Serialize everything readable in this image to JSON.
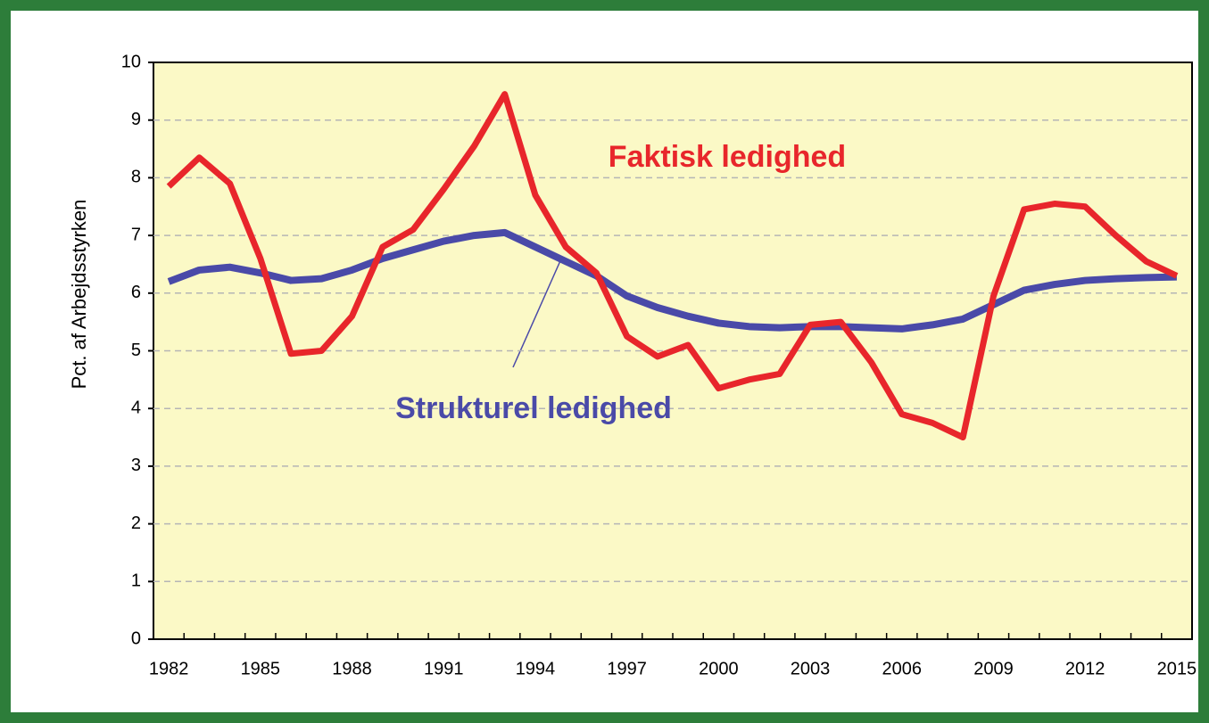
{
  "chart_data": {
    "type": "line",
    "ylabel": "Pct. af Arbejdsstyrken",
    "categories": [
      "1982",
      null,
      null,
      "1985",
      null,
      null,
      "1988",
      null,
      null,
      "1991",
      null,
      null,
      "1994",
      null,
      null,
      "1997",
      null,
      null,
      "2000",
      null,
      null,
      "2003",
      null,
      null,
      "2006",
      null,
      null,
      "2009",
      null,
      null,
      "2012",
      null,
      null,
      "2015"
    ],
    "series": [
      {
        "name": "Faktisk ledighed",
        "color": "#e8262b",
        "values": [
          7.85,
          8.35,
          7.9,
          6.6,
          4.95,
          5.0,
          5.6,
          6.8,
          7.1,
          7.8,
          8.55,
          9.45,
          7.7,
          6.8,
          6.35,
          5.25,
          4.9,
          5.1,
          4.35,
          4.5,
          4.6,
          5.45,
          5.5,
          4.8,
          3.9,
          3.75,
          3.5,
          5.95,
          7.45,
          7.55,
          7.5,
          7.0,
          6.55,
          6.3
        ]
      },
      {
        "name": "Strukturel ledighed",
        "color": "#4a4aa8",
        "values": [
          6.2,
          6.4,
          6.45,
          6.35,
          6.22,
          6.25,
          6.4,
          6.6,
          6.75,
          6.9,
          7.0,
          7.05,
          6.8,
          6.55,
          6.3,
          5.95,
          5.75,
          5.6,
          5.48,
          5.42,
          5.4,
          5.42,
          5.42,
          5.4,
          5.38,
          5.45,
          5.55,
          5.8,
          6.05,
          6.15,
          6.22,
          6.25,
          6.27,
          6.28
        ]
      }
    ],
    "ylim": [
      0,
      10
    ],
    "yticks": [
      0,
      1,
      2,
      3,
      4,
      5,
      6,
      7,
      8,
      9,
      10
    ],
    "grid": true
  }
}
